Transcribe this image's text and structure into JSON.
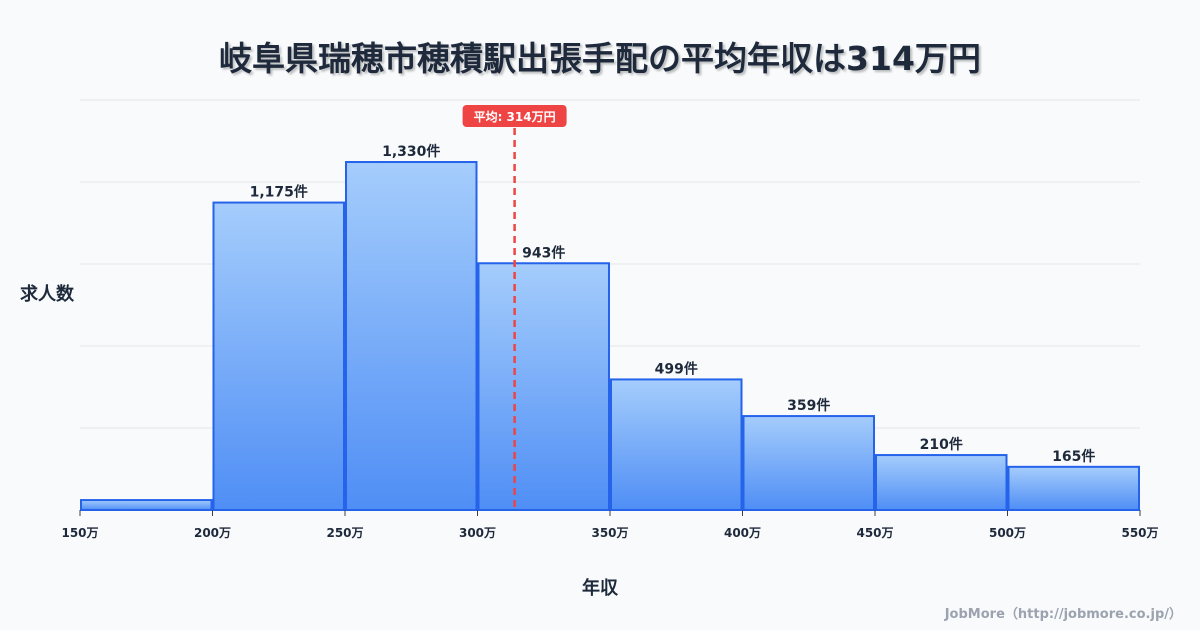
{
  "chart_data": {
    "type": "bar",
    "title": "岐阜県瑞穂市穂積駅出張手配の平均年収は314万円",
    "xlabel": "年収",
    "ylabel": "求人数",
    "bin_edges": [
      150,
      200,
      250,
      300,
      350,
      400,
      450,
      500,
      550
    ],
    "tick_labels": [
      "150万",
      "200万",
      "250万",
      "300万",
      "350万",
      "400万",
      "450万",
      "500万",
      "550万"
    ],
    "values": [
      38,
      1175,
      1330,
      943,
      499,
      359,
      210,
      165
    ],
    "data_labels": [
      "",
      "1,175件",
      "1,330件",
      "943件",
      "499件",
      "359件",
      "210件",
      "165件"
    ],
    "ylim": [
      0,
      1567
    ],
    "grid": true,
    "mean": {
      "value": 314,
      "label": "平均: 314万円",
      "color": "#ef4444"
    },
    "bar_color": "#2563eb"
  },
  "credit": "JobMore（http://jobmore.co.jp/）"
}
